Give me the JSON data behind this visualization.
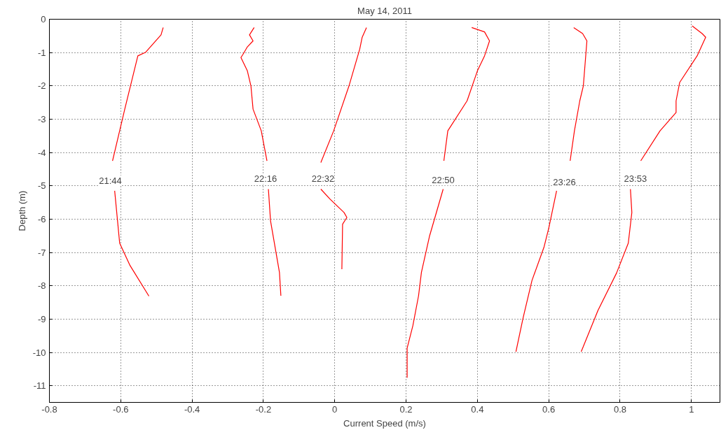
{
  "chart_data": {
    "type": "line",
    "title": "May 14, 2011",
    "xlabel": "Current Speed (m/s)",
    "ylabel": "Depth (m)",
    "xlim": [
      -0.8,
      1.08
    ],
    "ylim": [
      -11.5,
      0
    ],
    "xticks": [
      -0.8,
      -0.6,
      -0.4,
      -0.2,
      0,
      0.2,
      0.4,
      0.6,
      0.8,
      1
    ],
    "yticks": [
      0,
      -1,
      -2,
      -3,
      -4,
      -5,
      -6,
      -7,
      -8,
      -9,
      -10,
      -11
    ],
    "grid": true,
    "line_style": "solid",
    "marker": "none",
    "series": [
      {
        "color": "#ff0000",
        "x": [
          -0.481,
          -0.487,
          -0.53,
          -0.552,
          -0.588,
          -0.623,
          null,
          -0.617,
          -0.603,
          -0.574,
          -0.521
        ],
        "values": [
          -0.25,
          -0.47,
          -0.99,
          -1.1,
          -2.67,
          -4.25,
          null,
          -5.15,
          -6.72,
          -7.39,
          -8.31
        ]
      },
      {
        "color": "#ff0000",
        "x": [
          -0.226,
          -0.239,
          -0.229,
          -0.245,
          -0.257,
          -0.263,
          -0.245,
          -0.235,
          -0.229,
          -0.206,
          -0.19,
          null,
          -0.186,
          -0.18,
          -0.155,
          -0.151
        ],
        "values": [
          -0.25,
          -0.47,
          -0.65,
          -0.83,
          -1.05,
          -1.15,
          -1.55,
          -2.0,
          -2.7,
          -3.35,
          -4.25,
          null,
          -5.1,
          -6.05,
          -7.6,
          -8.3
        ]
      },
      {
        "color": "#ff0000",
        "x": [
          0.089,
          0.077,
          0.07,
          0.04,
          -0.003,
          -0.039,
          null,
          -0.039,
          -0.013,
          0.026,
          0.034,
          0.022,
          0.02
        ],
        "values": [
          -0.25,
          -0.54,
          -0.9,
          -2.0,
          -3.35,
          -4.3,
          null,
          -5.1,
          -5.4,
          -5.8,
          -5.95,
          -6.15,
          -7.5
        ]
      },
      {
        "color": "#ff0000",
        "x": [
          0.384,
          0.42,
          0.434,
          0.42,
          0.4,
          0.371,
          0.317,
          0.306,
          null,
          0.304,
          0.266,
          0.243,
          0.235,
          0.219,
          0.203,
          0.203
        ],
        "values": [
          -0.25,
          -0.38,
          -0.65,
          -1.1,
          -1.55,
          -2.45,
          -3.35,
          -4.25,
          null,
          -5.1,
          -6.5,
          -7.6,
          -8.3,
          -9.2,
          -9.87,
          -10.76
        ]
      },
      {
        "color": "#ff0000",
        "x": [
          0.67,
          0.695,
          0.707,
          0.697,
          0.687,
          0.672,
          0.66,
          null,
          0.622,
          0.6,
          0.587,
          0.553,
          0.528,
          0.508
        ],
        "values": [
          -0.25,
          -0.43,
          -0.65,
          -2.0,
          -2.45,
          -3.35,
          -4.25,
          null,
          -5.15,
          -6.27,
          -6.83,
          -7.84,
          -8.97,
          -9.98
        ]
      },
      {
        "color": "#ff0000",
        "x": [
          1.002,
          1.03,
          1.04,
          1.016,
          0.967,
          0.957,
          0.957,
          0.912,
          0.858,
          null,
          0.829,
          0.833,
          0.823,
          0.79,
          0.738,
          0.691
        ],
        "values": [
          -0.2,
          -0.43,
          -0.54,
          -1.1,
          -1.9,
          -2.45,
          -2.8,
          -3.35,
          -4.25,
          null,
          -5.1,
          -5.8,
          -6.72,
          -7.62,
          -8.74,
          -9.98
        ]
      }
    ],
    "annotations": [
      {
        "text": "21:44",
        "x": -0.629,
        "y": -4.85
      },
      {
        "text": "22:16",
        "x": -0.194,
        "y": -4.79
      },
      {
        "text": "22:32",
        "x": -0.033,
        "y": -4.79
      },
      {
        "text": "22:50",
        "x": 0.304,
        "y": -4.83
      },
      {
        "text": "23:26",
        "x": 0.644,
        "y": -4.88
      },
      {
        "text": "23:53",
        "x": 0.843,
        "y": -4.79
      }
    ]
  }
}
